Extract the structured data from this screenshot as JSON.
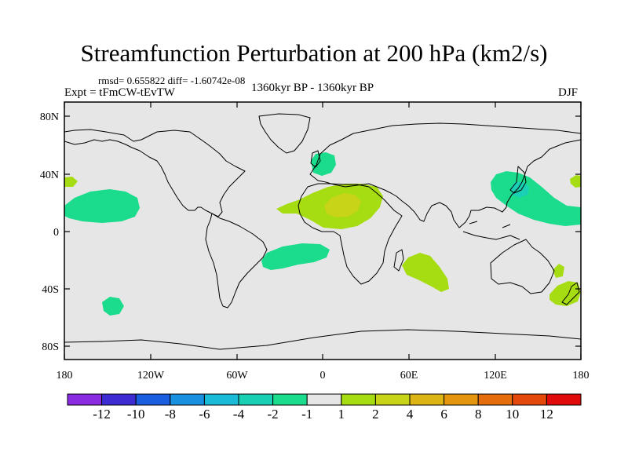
{
  "title": "Streamfunction Perturbation at 200 hPa (km2/s)",
  "stats": "rmsd= 0.655822 diff= -1.60742e-08",
  "experiment": "Expt = tFmCW-tEvTW",
  "period": "1360kyr BP - 1360kyr BP",
  "season": "DJF",
  "map": {
    "lat_ticks": [
      "80N",
      "40N",
      "0",
      "40S",
      "80S"
    ],
    "lon_ticks": [
      "180",
      "120W",
      "60W",
      "0",
      "60E",
      "120E",
      "180"
    ],
    "ocean_color": "#e6e6e6"
  },
  "colorbar": {
    "colors": [
      "#8a2be2",
      "#3c2cd2",
      "#1a5ee0",
      "#1990e0",
      "#19bbd9",
      "#1ad0b4",
      "#1adc8c",
      "#e6e6e6",
      "#a6dc12",
      "#c8d418",
      "#dcb414",
      "#e4960e",
      "#e46e0c",
      "#e4480a",
      "#e00a0a"
    ],
    "labels": [
      "-12",
      "-10",
      "-8",
      "-6",
      "-4",
      "-2",
      "-1",
      "1",
      "2",
      "4",
      "6",
      "8",
      "10",
      "12"
    ]
  },
  "anomalies": [
    {
      "name": "north-pacific-negative",
      "color": "#1adc8c"
    },
    {
      "name": "far-east-pacific-negative",
      "color": "#1adc8c"
    },
    {
      "name": "south-pacific-negative",
      "color": "#1adc8c"
    },
    {
      "name": "north-atlantic-negative",
      "color": "#1adc8c"
    },
    {
      "name": "south-atlantic-negative",
      "color": "#1adc8c"
    },
    {
      "name": "west-pacific-negative",
      "color": "#1adc8c"
    },
    {
      "name": "west-pacific-core",
      "color": "#1ad0b4"
    },
    {
      "name": "central-pacific-edge",
      "color": "#1adc8c"
    },
    {
      "name": "sahara-positive",
      "color": "#a6dc12"
    },
    {
      "name": "sahara-core",
      "color": "#c8d418"
    },
    {
      "name": "south-indian-positive",
      "color": "#a6dc12"
    },
    {
      "name": "new-zealand-positive",
      "color": "#a6dc12"
    },
    {
      "name": "australia-east-positive",
      "color": "#a6dc12"
    },
    {
      "name": "dateline-west-positive",
      "color": "#a6dc12"
    },
    {
      "name": "dateline-east-positive",
      "color": "#a6dc12"
    }
  ]
}
